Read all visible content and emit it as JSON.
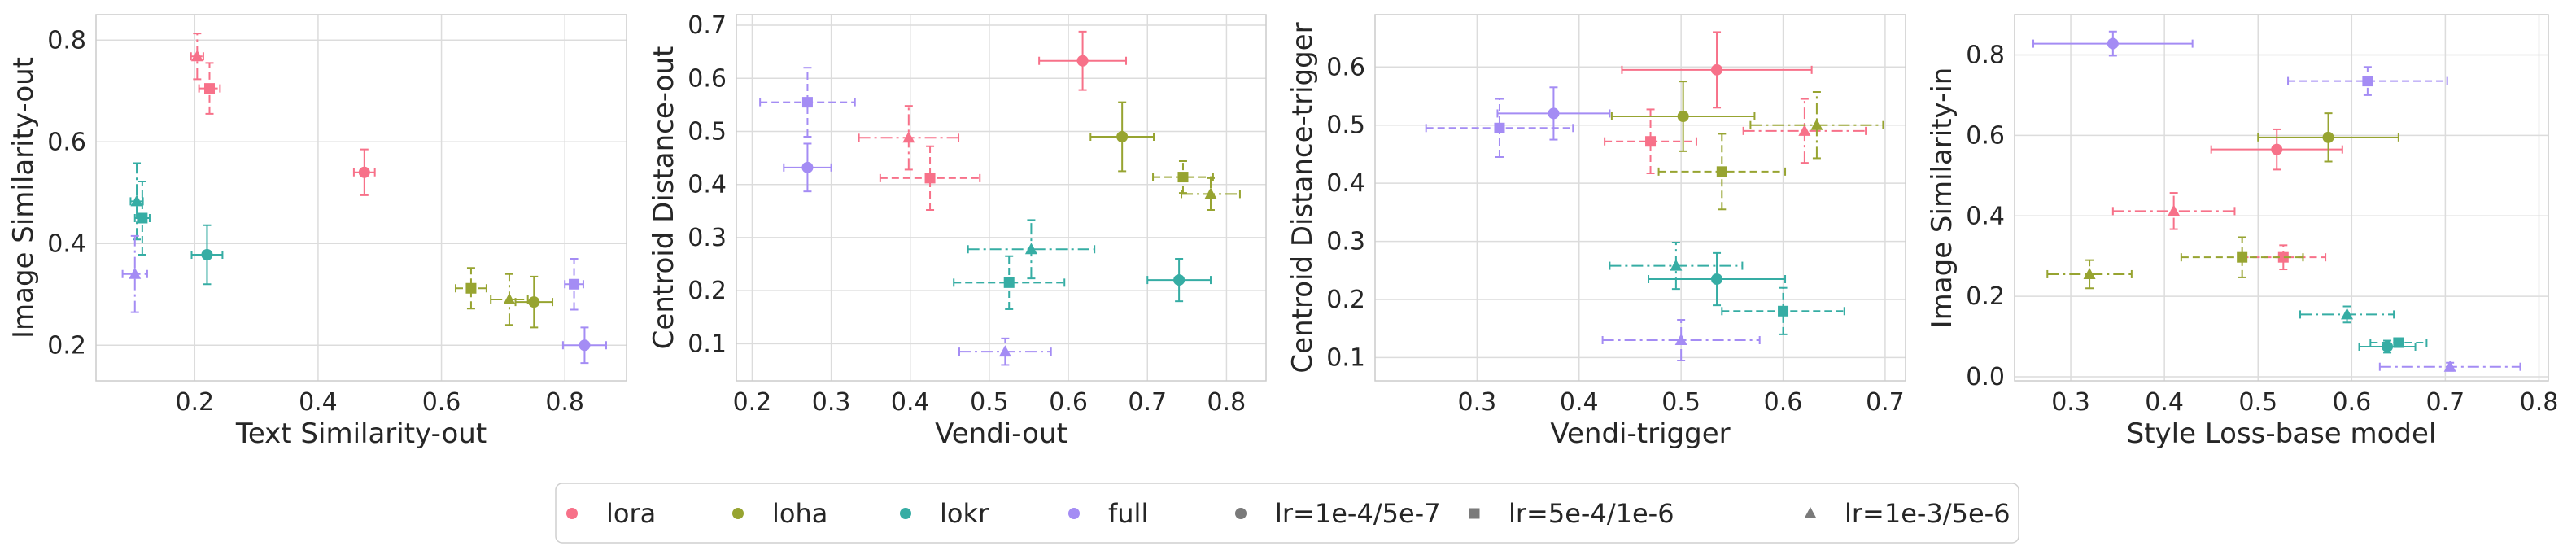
{
  "colors": {
    "lora": "#f77189",
    "loha": "#97a431",
    "lokr": "#36ada4",
    "full": "#a48cf4",
    "legend_marker": "#7a7a7a"
  },
  "legend": {
    "items": [
      {
        "label": "lora",
        "marker": "circle",
        "color": "#f77189"
      },
      {
        "label": "loha",
        "marker": "circle",
        "color": "#97a431"
      },
      {
        "label": "lokr",
        "marker": "circle",
        "color": "#36ada4"
      },
      {
        "label": "full",
        "marker": "circle",
        "color": "#a48cf4"
      },
      {
        "label": "lr=1e-4/5e-7",
        "marker": "circle",
        "color": "#7a7a7a"
      },
      {
        "label": "lr=5e-4/1e-6",
        "marker": "square",
        "color": "#7a7a7a"
      },
      {
        "label": "lr=1e-3/5e-6",
        "marker": "triangle",
        "color": "#7a7a7a"
      }
    ]
  },
  "chart_data": [
    {
      "type": "scatter",
      "xlabel": "Text Similarity-out",
      "ylabel": "Image Similarity-out",
      "xlim": [
        0.04,
        0.9
      ],
      "ylim": [
        0.13,
        0.85
      ],
      "grid": true,
      "xticks": [
        0.2,
        0.4,
        0.6,
        0.8
      ],
      "xtick_labels": [
        "0.2",
        "0.4",
        "0.6",
        "0.8"
      ],
      "yticks": [
        0.2,
        0.4,
        0.6,
        0.8
      ],
      "ytick_labels": [
        "0.2",
        "0.4",
        "0.6",
        "0.8"
      ],
      "points": [
        {
          "method": "lora",
          "lr": "lr=1e-4/5e-7",
          "x": 0.475,
          "y": 0.54,
          "xerr": 0.017,
          "yerr": 0.045
        },
        {
          "method": "lora",
          "lr": "lr=5e-4/1e-6",
          "x": 0.224,
          "y": 0.705,
          "xerr": 0.017,
          "yerr": 0.05
        },
        {
          "method": "lora",
          "lr": "lr=1e-3/5e-6",
          "x": 0.204,
          "y": 0.768,
          "xerr": 0.01,
          "yerr": 0.045
        },
        {
          "method": "loha",
          "lr": "lr=1e-4/5e-7",
          "x": 0.75,
          "y": 0.285,
          "xerr": 0.03,
          "yerr": 0.05
        },
        {
          "method": "loha",
          "lr": "lr=5e-4/1e-6",
          "x": 0.648,
          "y": 0.312,
          "xerr": 0.025,
          "yerr": 0.04
        },
        {
          "method": "loha",
          "lr": "lr=1e-3/5e-6",
          "x": 0.71,
          "y": 0.29,
          "xerr": 0.03,
          "yerr": 0.05
        },
        {
          "method": "lokr",
          "lr": "lr=1e-4/5e-7",
          "x": 0.22,
          "y": 0.378,
          "xerr": 0.025,
          "yerr": 0.058
        },
        {
          "method": "lokr",
          "lr": "lr=5e-4/1e-6",
          "x": 0.115,
          "y": 0.45,
          "xerr": 0.012,
          "yerr": 0.072
        },
        {
          "method": "lokr",
          "lr": "lr=1e-3/5e-6",
          "x": 0.106,
          "y": 0.483,
          "xerr": 0.01,
          "yerr": 0.075
        },
        {
          "method": "full",
          "lr": "lr=1e-4/5e-7",
          "x": 0.832,
          "y": 0.2,
          "xerr": 0.035,
          "yerr": 0.035
        },
        {
          "method": "full",
          "lr": "lr=5e-4/1e-6",
          "x": 0.815,
          "y": 0.32,
          "xerr": 0.015,
          "yerr": 0.05
        },
        {
          "method": "full",
          "lr": "lr=1e-3/5e-6",
          "x": 0.103,
          "y": 0.34,
          "xerr": 0.02,
          "yerr": 0.075
        }
      ]
    },
    {
      "type": "scatter",
      "xlabel": "Vendi-out",
      "ylabel": "Centroid Distance-out",
      "xlim": [
        0.18,
        0.85
      ],
      "ylim": [
        0.03,
        0.72
      ],
      "grid": true,
      "xticks": [
        0.2,
        0.3,
        0.4,
        0.5,
        0.6,
        0.7,
        0.8
      ],
      "xtick_labels": [
        "0.2",
        "0.3",
        "0.4",
        "0.5",
        "0.6",
        "0.7",
        "0.8"
      ],
      "yticks": [
        0.1,
        0.2,
        0.3,
        0.4,
        0.5,
        0.6,
        0.7
      ],
      "ytick_labels": [
        "0.1",
        "0.2",
        "0.3",
        "0.4",
        "0.5",
        "0.6",
        "0.7"
      ],
      "points": [
        {
          "method": "lora",
          "lr": "lr=1e-4/5e-7",
          "x": 0.618,
          "y": 0.633,
          "xerr": 0.055,
          "yerr": 0.055
        },
        {
          "method": "lora",
          "lr": "lr=5e-4/1e-6",
          "x": 0.425,
          "y": 0.412,
          "xerr": 0.063,
          "yerr": 0.06
        },
        {
          "method": "lora",
          "lr": "lr=1e-3/5e-6",
          "x": 0.398,
          "y": 0.488,
          "xerr": 0.063,
          "yerr": 0.06
        },
        {
          "method": "loha",
          "lr": "lr=1e-4/5e-7",
          "x": 0.668,
          "y": 0.49,
          "xerr": 0.04,
          "yerr": 0.065
        },
        {
          "method": "loha",
          "lr": "lr=5e-4/1e-6",
          "x": 0.745,
          "y": 0.414,
          "xerr": 0.038,
          "yerr": 0.03
        },
        {
          "method": "loha",
          "lr": "lr=1e-3/5e-6",
          "x": 0.78,
          "y": 0.382,
          "xerr": 0.037,
          "yerr": 0.03
        },
        {
          "method": "lokr",
          "lr": "lr=1e-4/5e-7",
          "x": 0.74,
          "y": 0.22,
          "xerr": 0.04,
          "yerr": 0.04
        },
        {
          "method": "lokr",
          "lr": "lr=5e-4/1e-6",
          "x": 0.525,
          "y": 0.215,
          "xerr": 0.07,
          "yerr": 0.05
        },
        {
          "method": "lokr",
          "lr": "lr=1e-3/5e-6",
          "x": 0.553,
          "y": 0.278,
          "xerr": 0.08,
          "yerr": 0.055
        },
        {
          "method": "full",
          "lr": "lr=1e-4/5e-7",
          "x": 0.27,
          "y": 0.432,
          "xerr": 0.03,
          "yerr": 0.045
        },
        {
          "method": "full",
          "lr": "lr=5e-4/1e-6",
          "x": 0.27,
          "y": 0.555,
          "xerr": 0.06,
          "yerr": 0.065
        },
        {
          "method": "full",
          "lr": "lr=1e-3/5e-6",
          "x": 0.52,
          "y": 0.085,
          "xerr": 0.058,
          "yerr": 0.025
        }
      ]
    },
    {
      "type": "scatter",
      "xlabel": "Vendi-trigger",
      "ylabel": "Centroid Distance-trigger",
      "xlim": [
        0.2,
        0.72
      ],
      "ylim": [
        0.06,
        0.69
      ],
      "grid": true,
      "xticks": [
        0.3,
        0.4,
        0.5,
        0.6,
        0.7
      ],
      "xtick_labels": [
        "0.3",
        "0.4",
        "0.5",
        "0.6",
        "0.7"
      ],
      "yticks": [
        0.1,
        0.2,
        0.3,
        0.4,
        0.5,
        0.6
      ],
      "ytick_labels": [
        "0.1",
        "0.2",
        "0.3",
        "0.4",
        "0.5",
        "0.6"
      ],
      "points": [
        {
          "method": "lora",
          "lr": "lr=1e-4/5e-7",
          "x": 0.535,
          "y": 0.595,
          "xerr": 0.093,
          "yerr": 0.065
        },
        {
          "method": "lora",
          "lr": "lr=5e-4/1e-6",
          "x": 0.47,
          "y": 0.472,
          "xerr": 0.045,
          "yerr": 0.055
        },
        {
          "method": "lora",
          "lr": "lr=1e-3/5e-6",
          "x": 0.621,
          "y": 0.49,
          "xerr": 0.06,
          "yerr": 0.055
        },
        {
          "method": "loha",
          "lr": "lr=1e-4/5e-7",
          "x": 0.502,
          "y": 0.515,
          "xerr": 0.07,
          "yerr": 0.06
        },
        {
          "method": "loha",
          "lr": "lr=5e-4/1e-6",
          "x": 0.54,
          "y": 0.42,
          "xerr": 0.062,
          "yerr": 0.065
        },
        {
          "method": "loha",
          "lr": "lr=1e-3/5e-6",
          "x": 0.633,
          "y": 0.5,
          "xerr": 0.065,
          "yerr": 0.057
        },
        {
          "method": "lokr",
          "lr": "lr=1e-4/5e-7",
          "x": 0.535,
          "y": 0.235,
          "xerr": 0.067,
          "yerr": 0.045
        },
        {
          "method": "lokr",
          "lr": "lr=5e-4/1e-6",
          "x": 0.6,
          "y": 0.18,
          "xerr": 0.06,
          "yerr": 0.04
        },
        {
          "method": "lokr",
          "lr": "lr=1e-3/5e-6",
          "x": 0.495,
          "y": 0.258,
          "xerr": 0.065,
          "yerr": 0.04
        },
        {
          "method": "full",
          "lr": "lr=1e-4/5e-7",
          "x": 0.375,
          "y": 0.52,
          "xerr": 0.055,
          "yerr": 0.045
        },
        {
          "method": "full",
          "lr": "lr=5e-4/1e-6",
          "x": 0.322,
          "y": 0.495,
          "xerr": 0.072,
          "yerr": 0.05
        },
        {
          "method": "full",
          "lr": "lr=1e-3/5e-6",
          "x": 0.5,
          "y": 0.13,
          "xerr": 0.077,
          "yerr": 0.035
        }
      ]
    },
    {
      "type": "scatter",
      "xlabel": "Style Loss-base model",
      "ylabel": "Image Similarity-in",
      "xlim": [
        0.24,
        0.81
      ],
      "ylim": [
        -0.01,
        0.9
      ],
      "grid": true,
      "xticks": [
        0.3,
        0.4,
        0.5,
        0.6,
        0.7,
        0.8
      ],
      "xtick_labels": [
        "0.3",
        "0.4",
        "0.5",
        "0.6",
        "0.7",
        "0.8"
      ],
      "yticks": [
        0.0,
        0.2,
        0.4,
        0.6,
        0.8
      ],
      "ytick_labels": [
        "0.0",
        "0.2",
        "0.4",
        "0.6",
        "0.8"
      ],
      "points": [
        {
          "method": "lora",
          "lr": "lr=1e-4/5e-7",
          "x": 0.52,
          "y": 0.565,
          "xerr": 0.07,
          "yerr": 0.05
        },
        {
          "method": "lora",
          "lr": "lr=5e-4/1e-6",
          "x": 0.527,
          "y": 0.297,
          "xerr": 0.045,
          "yerr": 0.03
        },
        {
          "method": "lora",
          "lr": "lr=1e-3/5e-6",
          "x": 0.41,
          "y": 0.412,
          "xerr": 0.065,
          "yerr": 0.045
        },
        {
          "method": "loha",
          "lr": "lr=1e-4/5e-7",
          "x": 0.575,
          "y": 0.595,
          "xerr": 0.075,
          "yerr": 0.06
        },
        {
          "method": "loha",
          "lr": "lr=5e-4/1e-6",
          "x": 0.483,
          "y": 0.297,
          "xerr": 0.065,
          "yerr": 0.05
        },
        {
          "method": "loha",
          "lr": "lr=1e-3/5e-6",
          "x": 0.32,
          "y": 0.255,
          "xerr": 0.045,
          "yerr": 0.035
        },
        {
          "method": "lokr",
          "lr": "lr=1e-4/5e-7",
          "x": 0.638,
          "y": 0.075,
          "xerr": 0.03,
          "yerr": 0.015
        },
        {
          "method": "lokr",
          "lr": "lr=5e-4/1e-6",
          "x": 0.65,
          "y": 0.085,
          "xerr": 0.03,
          "yerr": 0.01
        },
        {
          "method": "lokr",
          "lr": "lr=1e-3/5e-6",
          "x": 0.595,
          "y": 0.155,
          "xerr": 0.05,
          "yerr": 0.02
        },
        {
          "method": "full",
          "lr": "lr=1e-4/5e-7",
          "x": 0.345,
          "y": 0.828,
          "xerr": 0.085,
          "yerr": 0.03
        },
        {
          "method": "full",
          "lr": "lr=5e-4/1e-6",
          "x": 0.617,
          "y": 0.735,
          "xerr": 0.085,
          "yerr": 0.035
        },
        {
          "method": "full",
          "lr": "lr=1e-3/5e-6",
          "x": 0.705,
          "y": 0.025,
          "xerr": 0.075,
          "yerr": 0.01
        }
      ]
    }
  ]
}
